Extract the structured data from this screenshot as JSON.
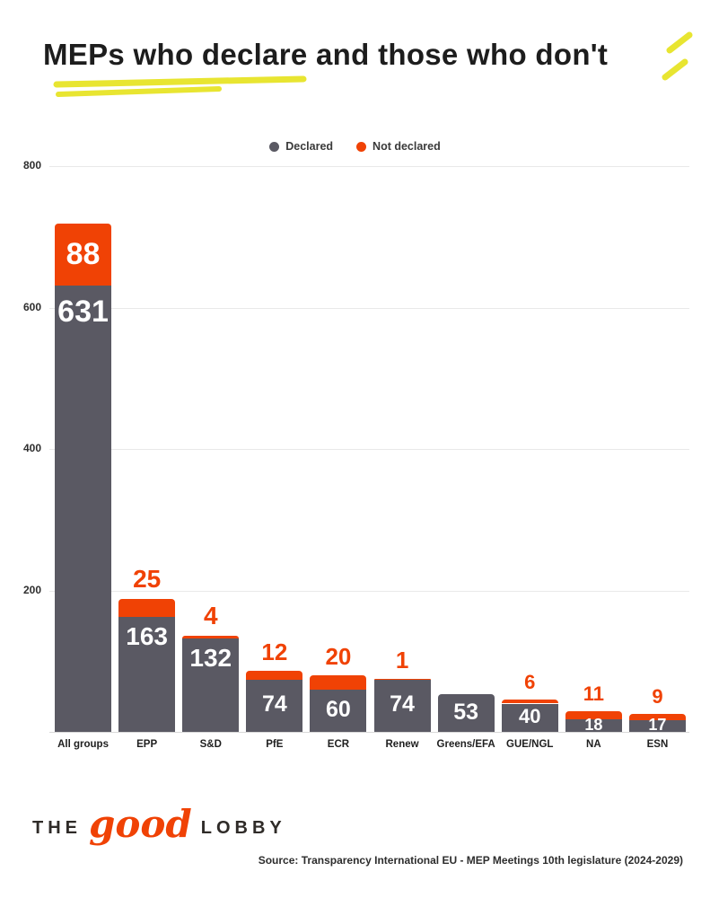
{
  "title": "MEPs who declare and those who don't",
  "legend": {
    "declared": "Declared",
    "not_declared": "Not declared"
  },
  "colors": {
    "declared": "#5a5963",
    "not_declared": "#f04205",
    "highlight_yellow": "#e8e531",
    "title": "#1d1d1d"
  },
  "chart_data": {
    "type": "bar",
    "stacked": true,
    "title": "MEPs who declare and those who don't",
    "categories": [
      "All groups",
      "EPP",
      "S&D",
      "PfE",
      "ECR",
      "Renew",
      "Greens/EFA",
      "GUE/NGL",
      "NA",
      "ESN"
    ],
    "series": [
      {
        "name": "Declared",
        "color": "#5a5963",
        "values": [
          631,
          163,
          132,
          74,
          60,
          74,
          53,
          40,
          18,
          17
        ]
      },
      {
        "name": "Not declared",
        "color": "#f04205",
        "values": [
          88,
          25,
          4,
          12,
          20,
          1,
          0,
          6,
          11,
          9
        ]
      }
    ],
    "ylim": [
      0,
      800
    ],
    "yticks": [
      800,
      600,
      400,
      200
    ],
    "grid": "horizontal",
    "legend_position": "top"
  },
  "footer": {
    "logo": {
      "the": "THE",
      "good": "good",
      "lobby": "LOBBY"
    },
    "source": "Source: Transparency International EU - MEP Meetings 10th legislature (2024-2029)"
  }
}
